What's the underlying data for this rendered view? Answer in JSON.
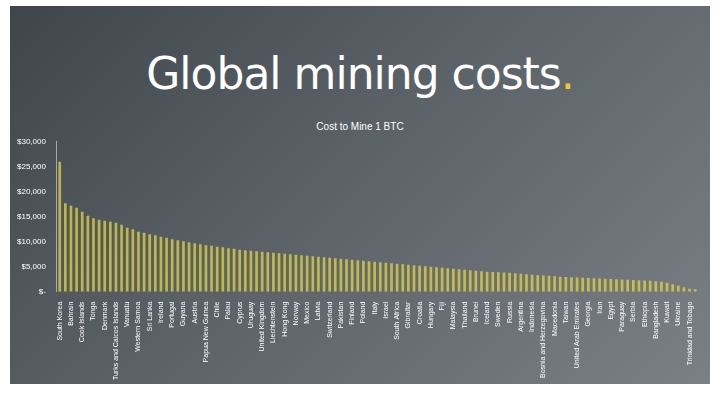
{
  "chart_data": {
    "type": "bar",
    "title": "Global mining costs.",
    "subtitle": "Cost to Mine 1 BTC",
    "categories": [
      "South Korea",
      null,
      "Bahrain",
      null,
      "Cook Islands",
      null,
      "Tonga",
      null,
      "Denmark",
      null,
      "Turks and Caicos Islands",
      null,
      "Vanuatu",
      null,
      "Western Samoa",
      null,
      "Sri Lanka",
      null,
      "Ireland",
      null,
      "Portugal",
      null,
      "Guyana",
      null,
      "Austria",
      null,
      "Papua New Guinea",
      null,
      "Chile",
      null,
      "Palau",
      null,
      "Cyprus",
      null,
      "Uruguay",
      null,
      "United Kingdom",
      null,
      "Liechtenstein",
      null,
      "Hong Kong",
      null,
      "Norway",
      null,
      "Mexico",
      null,
      "Latvia",
      null,
      "Switzerland",
      null,
      "Pakistan",
      null,
      "Finland",
      null,
      "Poland",
      null,
      "Italy",
      null,
      "Israel",
      null,
      "South Africa",
      null,
      "Gibraltar",
      null,
      "Croatia",
      null,
      "Hungary",
      null,
      "Fiji",
      null,
      "Malaysia",
      null,
      "Thailand",
      null,
      "Brunei",
      null,
      "Iceland",
      null,
      "Sweden",
      null,
      "Russia",
      null,
      "Argentina",
      null,
      "Indonesia",
      null,
      "Bosnia and Herzegovina",
      null,
      "Macedonia",
      null,
      "Taiwan",
      null,
      "United Arab Emirates",
      null,
      "Georgia",
      null,
      "Iran",
      null,
      "Egypt",
      null,
      "Paraguay",
      null,
      "Serbia",
      null,
      "Ethiopia",
      null,
      "Bangladesh",
      null,
      "Kuwait",
      null,
      "Ukraine",
      null,
      "Trinidad and Tobago",
      null
    ],
    "values": [
      26000,
      17700,
      17200,
      16800,
      16000,
      15200,
      14700,
      14400,
      14200,
      14000,
      13800,
      13400,
      12800,
      12500,
      12000,
      11800,
      11500,
      11300,
      11000,
      10800,
      10500,
      10300,
      10100,
      9900,
      9700,
      9500,
      9300,
      9200,
      9000,
      8900,
      8700,
      8600,
      8400,
      8300,
      8200,
      8100,
      8000,
      7900,
      7800,
      7700,
      7600,
      7500,
      7400,
      7300,
      7200,
      7100,
      7000,
      6900,
      6800,
      6700,
      6600,
      6500,
      6400,
      6300,
      6200,
      6100,
      6000,
      5900,
      5800,
      5700,
      5600,
      5500,
      5400,
      5300,
      5200,
      5100,
      5000,
      4900,
      4800,
      4700,
      4600,
      4500,
      4400,
      4300,
      4200,
      4100,
      4000,
      3950,
      3900,
      3850,
      3800,
      3700,
      3600,
      3500,
      3400,
      3300,
      3250,
      3200,
      3100,
      3000,
      2950,
      2900,
      2850,
      2800,
      2750,
      2700,
      2650,
      2600,
      2550,
      2500,
      2450,
      2400,
      2350,
      2300,
      2250,
      2200,
      2100,
      2000,
      1800,
      1500,
      1200,
      900,
      600,
      500
    ],
    "color": "#e3d53f",
    "ylim": [
      0,
      30000
    ],
    "yticks": [
      {
        "value": 0,
        "label": "$-"
      },
      {
        "value": 5000,
        "label": "$5,000"
      },
      {
        "value": 10000,
        "label": "$10,000"
      },
      {
        "value": 15000,
        "label": "$15,000"
      },
      {
        "value": 20000,
        "label": "$20,000"
      },
      {
        "value": 25000,
        "label": "$25,000"
      },
      {
        "value": 30000,
        "label": "$30,000"
      }
    ],
    "grid": false
  }
}
